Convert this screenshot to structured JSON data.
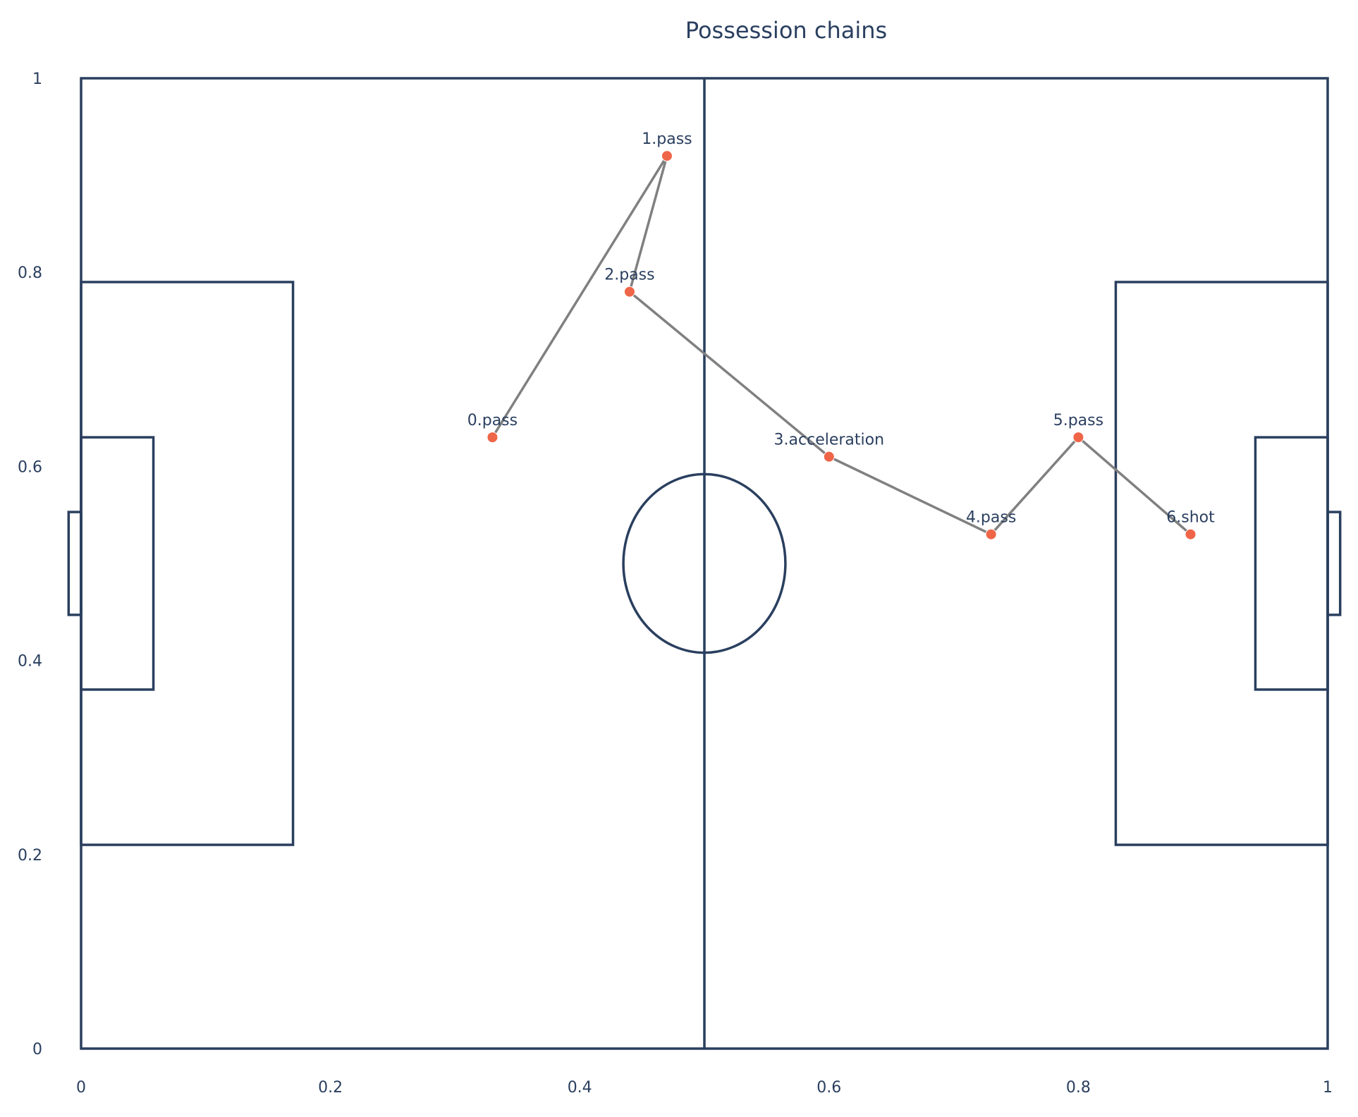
{
  "colors": {
    "pitch_line": "#2a3f5f",
    "chain_line": "#808080",
    "marker": "#ef6548",
    "text": "#2a3f5f"
  },
  "chart_data": {
    "type": "scatter",
    "title": "Possession chains",
    "xlabel": "",
    "ylabel": "",
    "xlim": [
      0,
      1
    ],
    "ylim": [
      0,
      1
    ],
    "grid": false,
    "x_ticks": [
      "0",
      "0.2",
      "0.4",
      "0.6",
      "0.8",
      "1"
    ],
    "x_tick_values": [
      0,
      0.2,
      0.4,
      0.6,
      0.8,
      1
    ],
    "y_ticks": [
      "0",
      "0.2",
      "0.4",
      "0.6",
      "0.8",
      "1"
    ],
    "y_tick_values": [
      0,
      0.2,
      0.4,
      0.6,
      0.8,
      1
    ],
    "points": [
      {
        "label": "0.pass",
        "x": 0.33,
        "y": 0.63
      },
      {
        "label": "1.pass",
        "x": 0.47,
        "y": 0.92
      },
      {
        "label": "2.pass",
        "x": 0.44,
        "y": 0.78
      },
      {
        "label": "3.acceleration",
        "x": 0.6,
        "y": 0.61
      },
      {
        "label": "4.pass",
        "x": 0.73,
        "y": 0.53
      },
      {
        "label": "5.pass",
        "x": 0.8,
        "y": 0.63
      },
      {
        "label": "6.shot",
        "x": 0.89,
        "y": 0.53
      }
    ],
    "pitch": {
      "penalty_area_depth": 0.17,
      "penalty_area_y": [
        0.21,
        0.79
      ],
      "goal_area_depth": 0.058,
      "goal_area_y": [
        0.37,
        0.63
      ],
      "goal_depth": 0.01,
      "goal_y": [
        0.447,
        0.553
      ],
      "center": [
        0.5,
        0.5
      ],
      "center_circle_rx": 0.065,
      "center_circle_ry": 0.092
    }
  }
}
